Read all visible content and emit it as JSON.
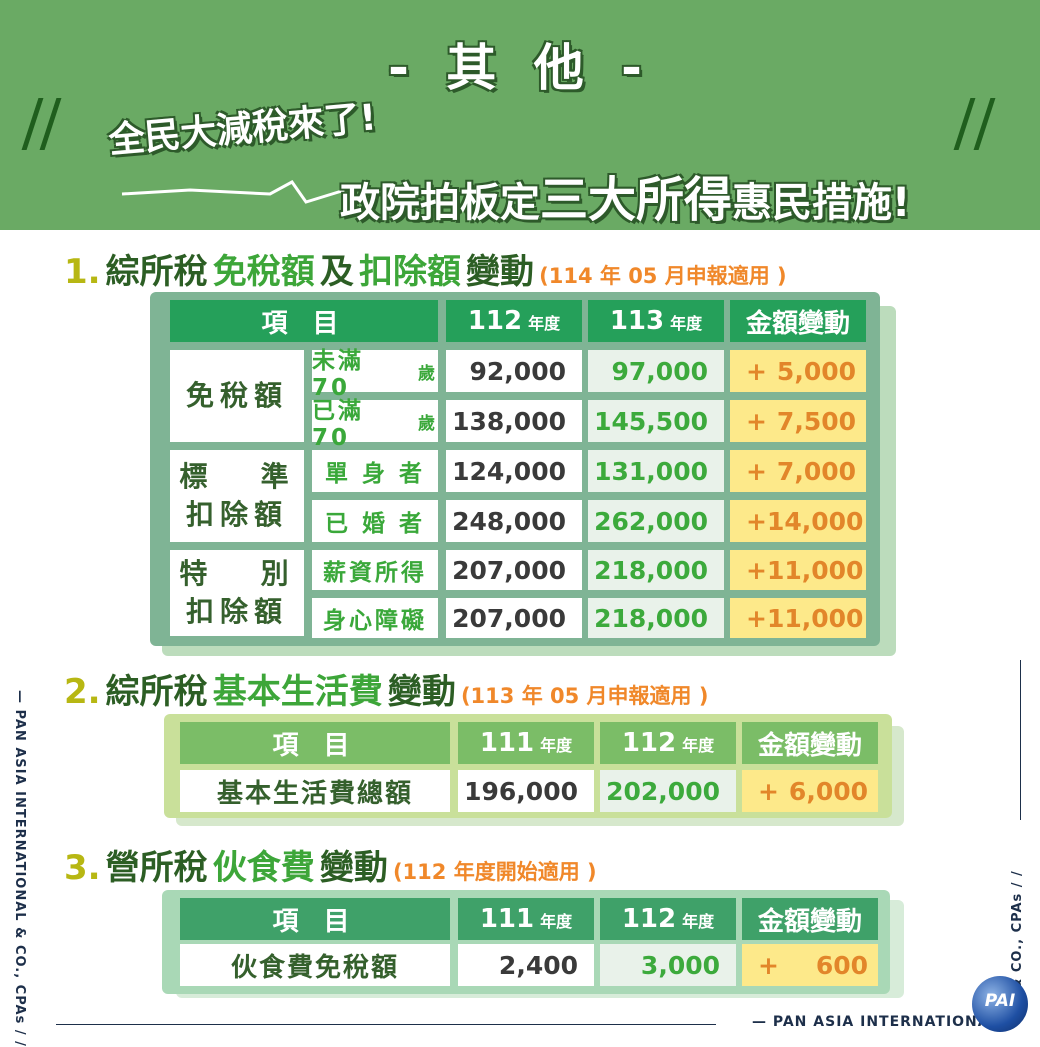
{
  "banner": {
    "title": "- 其 他 -",
    "line1": "全民大減稅來了!",
    "line2_a": "政院拍板定",
    "line2_b": "三大所得",
    "line2_c": "惠民措施!"
  },
  "section1": {
    "num": "1.",
    "a": "綜所稅",
    "b": "免稅額",
    "c": "及",
    "d": "扣除額",
    "e": "變動",
    "note": "(114 年 05 月申報適用 )",
    "headers": {
      "item": "項    目",
      "y1": "112",
      "y2": "113",
      "unit": "年度",
      "change": "金額變動"
    },
    "groups": [
      {
        "category": "免稅額",
        "rows": [
          {
            "label": "未滿 70",
            "label_unit": "歲",
            "v1": "92,000",
            "v2": "97,000",
            "sign": "+",
            "delta": "5,000"
          },
          {
            "label": "已滿 70",
            "label_unit": "歲",
            "v1": "138,000",
            "v2": "145,500",
            "sign": "+",
            "delta": "7,500"
          }
        ]
      },
      {
        "category_l1": "標   準",
        "category_l2": "扣除額",
        "rows": [
          {
            "label": "單 身 者",
            "v1": "124,000",
            "v2": "131,000",
            "sign": "+",
            "delta": "7,000"
          },
          {
            "label": "已 婚 者",
            "v1": "248,000",
            "v2": "262,000",
            "sign": "+",
            "delta": "14,000"
          }
        ]
      },
      {
        "category_l1": "特   別",
        "category_l2": "扣除額",
        "rows": [
          {
            "label": "薪資所得",
            "v1": "207,000",
            "v2": "218,000",
            "sign": "+",
            "delta": "11,000"
          },
          {
            "label": "身心障礙",
            "v1": "207,000",
            "v2": "218,000",
            "sign": "+",
            "delta": "11,000"
          }
        ]
      }
    ]
  },
  "section2": {
    "num": "2.",
    "a": "綜所稅",
    "b": "基本生活費",
    "e": "變動",
    "note": "(113 年 05 月申報適用 )",
    "headers": {
      "item": "項    目",
      "y1": "111",
      "y2": "112",
      "unit": "年度",
      "change": "金額變動"
    },
    "row": {
      "label": "基本生活費總額",
      "v1": "196,000",
      "v2": "202,000",
      "sign": "+",
      "delta": "6,000"
    }
  },
  "section3": {
    "num": "3.",
    "a": "營所稅",
    "b": "伙食費",
    "e": "變動",
    "note": "(112 年度開始適用 )",
    "headers": {
      "item": "項    目",
      "y1": "111",
      "y2": "112",
      "unit": "年度",
      "change": "金額變動"
    },
    "row": {
      "label": "伙食費免稅額",
      "v1": "2,400",
      "v2": "3,000",
      "sign": "+",
      "delta": "600"
    }
  },
  "side": {
    "left": "— PAN ASIA INTERNATIONAL & CO., CPAs / /",
    "right": "& CO., CPAs / /",
    "footer": "— PAN ASIA INTERNATIONAL",
    "logo": "PAI"
  },
  "colors": {
    "banner": "#6aaa64",
    "header_green": "#25a05a",
    "change_yellow": "#fde98a",
    "accent_orange": "#f0882a"
  }
}
